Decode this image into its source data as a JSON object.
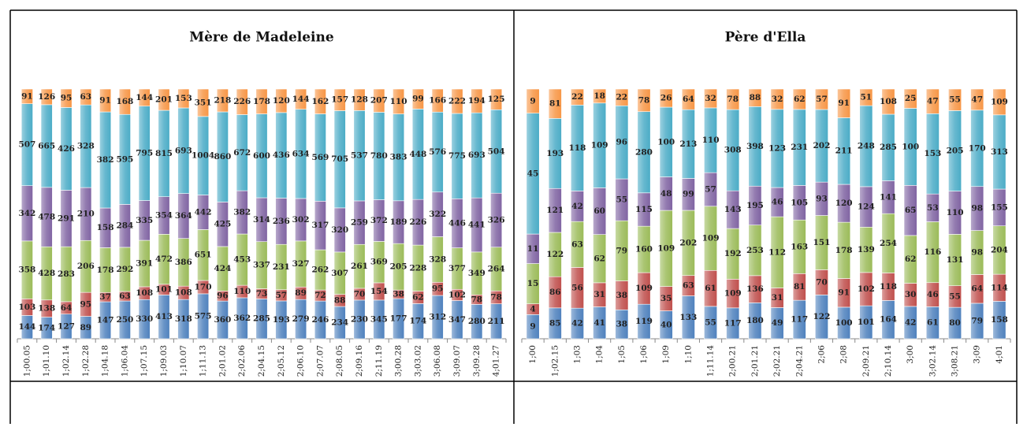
{
  "chart_data": [
    {
      "type": "bar",
      "stacked": "percent",
      "title": "Mère de Madeleine",
      "categories": [
        "1;00.05",
        "1;01.10",
        "1;02.14",
        "1;02.28",
        "1;04.18",
        "1;06.04",
        "1;07.15",
        "1;09.03",
        "1;10.07",
        "1;11.13",
        "2;01.02",
        "2;02.06",
        "2;04.15",
        "2;05.12",
        "2;06.10",
        "2;07.07",
        "2;08.05",
        "2;09.16",
        "2;11.19",
        "3;00.28",
        "3;03.02",
        "3;06.08",
        "3;09.07",
        "3;09.28",
        "4;01.27"
      ],
      "series": [
        {
          "color": "#4f81bd",
          "values": [
            144,
            174,
            127,
            89,
            147,
            250,
            330,
            413,
            318,
            575,
            360,
            362,
            285,
            193,
            279,
            246,
            234,
            230,
            345,
            177,
            174,
            312,
            347,
            280,
            211
          ]
        },
        {
          "color": "#c0504d",
          "values": [
            103,
            138,
            64,
            95,
            37,
            63,
            108,
            101,
            108,
            170,
            96,
            110,
            73,
            57,
            89,
            72,
            88,
            70,
            154,
            38,
            62,
            95,
            102,
            78,
            78
          ]
        },
        {
          "color": "#9bbb59",
          "values": [
            358,
            428,
            283,
            206,
            178,
            292,
            391,
            472,
            386,
            651,
            424,
            453,
            337,
            231,
            327,
            262,
            307,
            261,
            369,
            205,
            228,
            328,
            377,
            349,
            264
          ]
        },
        {
          "color": "#8064a2",
          "values": [
            342,
            478,
            291,
            210,
            158,
            284,
            335,
            354,
            364,
            442,
            425,
            382,
            314,
            236,
            302,
            317,
            320,
            259,
            372,
            189,
            226,
            322,
            446,
            441,
            326
          ]
        },
        {
          "color": "#4bacc6",
          "values": [
            507,
            665,
            426,
            328,
            382,
            595,
            795,
            815,
            693,
            1004,
            860,
            672,
            600,
            436,
            634,
            569,
            705,
            537,
            780,
            383,
            448,
            576,
            775,
            693,
            504
          ]
        },
        {
          "color": "#f79646",
          "values": [
            91,
            126,
            95,
            63,
            91,
            168,
            144,
            201,
            153,
            351,
            218,
            226,
            178,
            120,
            144,
            162,
            157,
            128,
            207,
            110,
            99,
            166,
            222,
            194,
            125
          ]
        }
      ]
    },
    {
      "type": "bar",
      "stacked": "percent",
      "title": "Père d'Ella",
      "categories": [
        "1;00",
        "1;02.15",
        "1;03",
        "1;04",
        "1;05",
        "1;06",
        "1;09",
        "1;10",
        "1;11.14",
        "2;00.21",
        "2;01.21",
        "2;02.21",
        "2;04.21",
        "2;06",
        "2;08",
        "2;09.21",
        "2;10.14",
        "3;00",
        "3;02.14",
        "3;08.21",
        "3;09",
        "4;01"
      ],
      "series": [
        {
          "color": "#4f81bd",
          "values": [
            9,
            85,
            42,
            41,
            38,
            119,
            40,
            133,
            55,
            117,
            180,
            49,
            117,
            122,
            100,
            101,
            164,
            42,
            61,
            80,
            79,
            158
          ]
        },
        {
          "color": "#c0504d",
          "values": [
            4,
            86,
            56,
            31,
            38,
            109,
            35,
            63,
            61,
            109,
            136,
            31,
            81,
            70,
            91,
            102,
            118,
            30,
            46,
            55,
            64,
            114
          ]
        },
        {
          "color": "#9bbb59",
          "values": [
            15,
            122,
            63,
            62,
            79,
            160,
            109,
            202,
            109,
            192,
            253,
            112,
            163,
            151,
            178,
            139,
            254,
            62,
            116,
            131,
            98,
            204
          ]
        },
        {
          "color": "#8064a2",
          "values": [
            11,
            121,
            42,
            60,
            55,
            115,
            48,
            99,
            57,
            143,
            195,
            46,
            105,
            93,
            120,
            124,
            141,
            65,
            53,
            110,
            98,
            155
          ]
        },
        {
          "color": "#4bacc6",
          "values": [
            45,
            193,
            118,
            109,
            96,
            280,
            100,
            213,
            110,
            308,
            398,
            123,
            231,
            202,
            211,
            248,
            285,
            100,
            153,
            205,
            170,
            313
          ]
        },
        {
          "color": "#f79646",
          "values": [
            9,
            81,
            22,
            18,
            22,
            78,
            26,
            64,
            32,
            78,
            88,
            32,
            62,
            57,
            91,
            51,
            108,
            25,
            47,
            55,
            47,
            109
          ]
        }
      ]
    }
  ]
}
